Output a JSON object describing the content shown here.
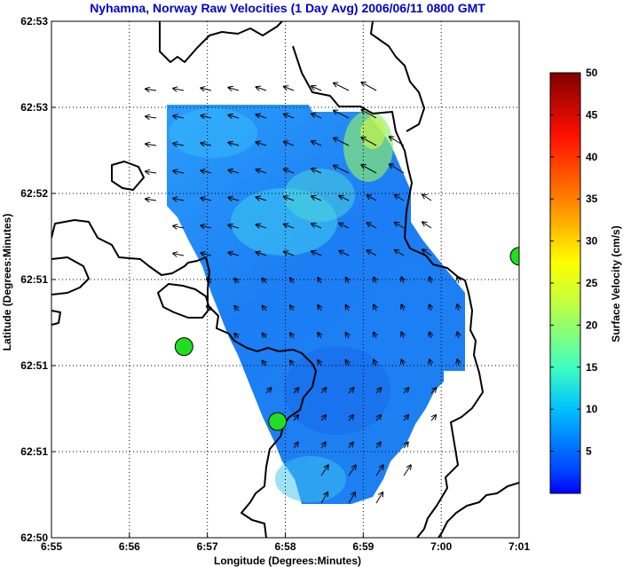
{
  "chart_data": {
    "type": "heatmap",
    "title": "Nyhamna, Norway Raw Velocities (1 Day Avg) 2006/06/11 0800 GMT",
    "xlabel": "Longitude (Degrees:Minutes)",
    "ylabel": "Latitude (Degrees:Minutes)",
    "x_ticks": [
      "6:55",
      "6:56",
      "6:57",
      "6:58",
      "6:59",
      "7:00",
      "7:01"
    ],
    "y_ticks": [
      "62:53",
      "62:53",
      "62:52",
      "62:51",
      "62:51",
      "62:51",
      "62:50"
    ],
    "grid": true,
    "colorbar": {
      "label": "Surface Velocity (cm/s)",
      "range": [
        0,
        50
      ],
      "ticks": [
        "5",
        "10",
        "15",
        "20",
        "25",
        "30",
        "35",
        "40",
        "45",
        "50"
      ]
    },
    "stations": [
      {
        "lon_min": 1.7,
        "lat_level": 0.37
      },
      {
        "lon_min": 2.9,
        "lat_level": 0.225
      },
      {
        "lon_min": 6.0,
        "lat_level": 0.545
      }
    ]
  },
  "colors": {
    "title": "#0000cc",
    "station": "#22dd22",
    "coast": "#000000"
  }
}
